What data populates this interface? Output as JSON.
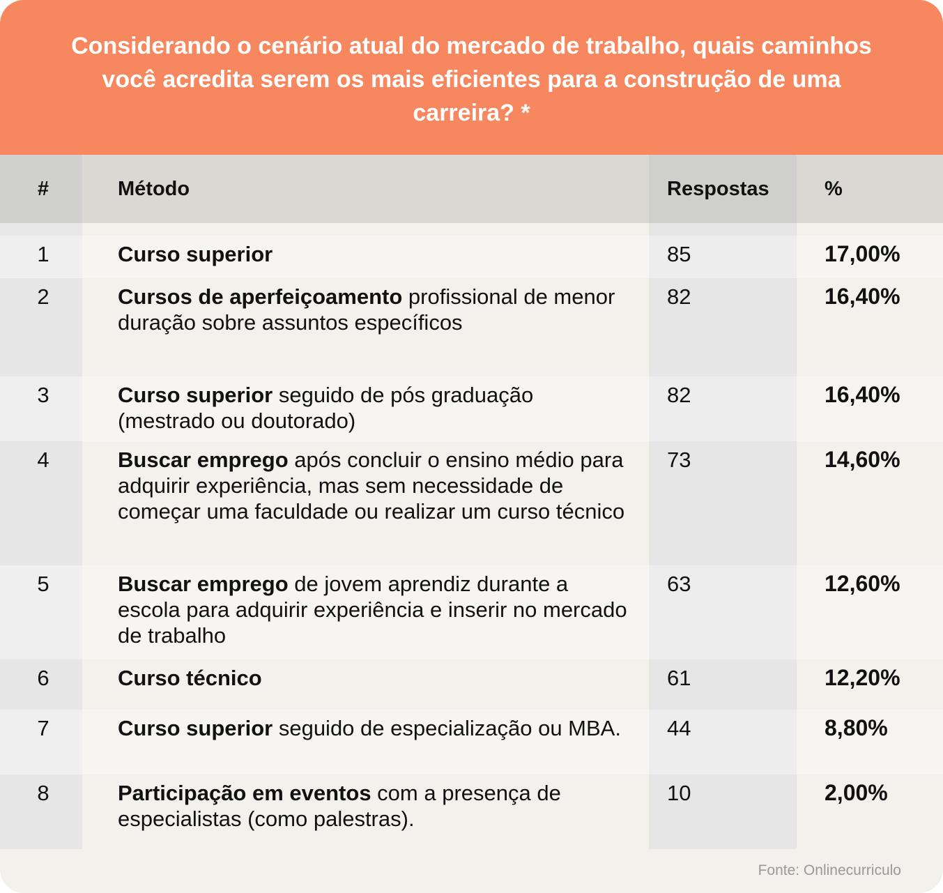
{
  "title": "Considerando o cenário atual do mercado de trabalho, quais caminhos você acredita serem os mais eficientes para a construção de uma carreira? *",
  "source": "Fonte: Onlinecurriculo",
  "colors": {
    "header": "#F7875F",
    "background": "#F2F1EC"
  },
  "chart_data": {
    "type": "table",
    "columns": [
      "#",
      "Método",
      "Respostas",
      "%"
    ],
    "rows": [
      {
        "n": "1",
        "bold": "Curso superior",
        "rest": "",
        "respostas": "85",
        "pct": "17,00%"
      },
      {
        "n": "2",
        "bold": "Cursos de aperfeiçoamento",
        "rest": " profissional de menor duração sobre assuntos específicos",
        "respostas": "82",
        "pct": "16,40%"
      },
      {
        "n": "3",
        "bold": "Curso superior",
        "rest": " seguido de pós graduação (mestrado ou doutorado)",
        "respostas": "82",
        "pct": "16,40%"
      },
      {
        "n": "4",
        "bold": "Buscar emprego",
        "rest": " após concluir o ensino médio para adquirir experiência, mas sem necessidade de começar uma faculdade ou realizar um curso técnico",
        "respostas": "73",
        "pct": "14,60%"
      },
      {
        "n": "5",
        "bold": "Buscar emprego",
        "rest": " de jovem aprendiz durante a escola para adquirir experiência e inserir no mercado de trabalho",
        "respostas": "63",
        "pct": "12,60%"
      },
      {
        "n": "6",
        "bold": "Curso técnico",
        "rest": "",
        "respostas": "61",
        "pct": "12,20%"
      },
      {
        "n": "7",
        "bold": "Curso superior",
        "rest": " seguido de especialização ou MBA.",
        "respostas": "44",
        "pct": "8,80%"
      },
      {
        "n": "8",
        "bold": "Participação em eventos",
        "rest": " com a presença de especialistas (como palestras).",
        "respostas": "10",
        "pct": "2,00%"
      }
    ]
  }
}
